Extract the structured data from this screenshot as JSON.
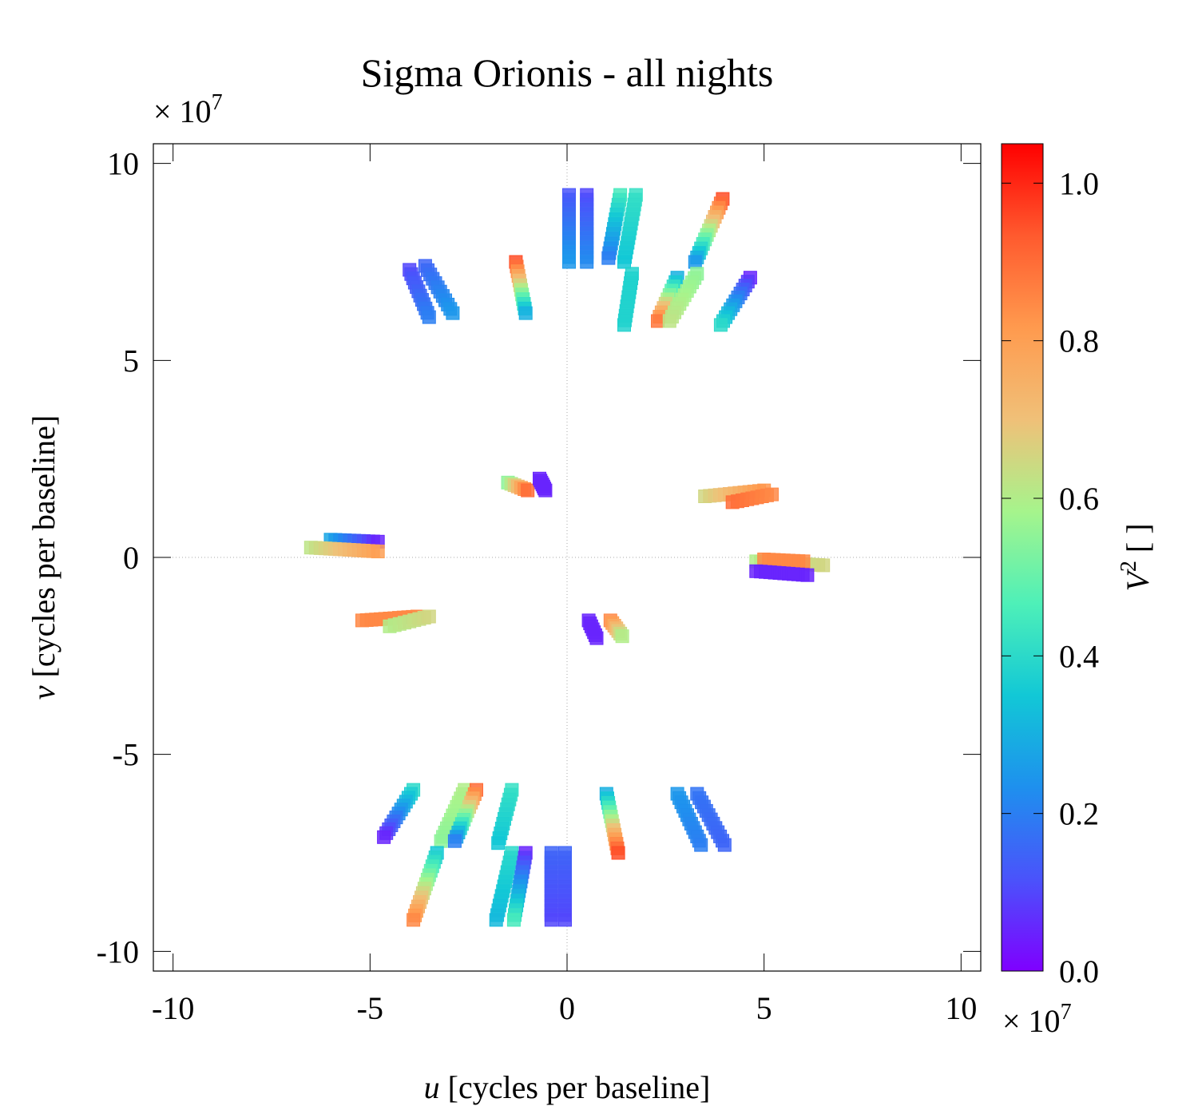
{
  "chart_data": {
    "type": "scatter",
    "title": "Sigma Orionis - all nights",
    "xlabel": {
      "var": "u",
      "rest": " [cycles per baseline]"
    },
    "ylabel": {
      "var": "v",
      "rest": " [cycles per baseline]"
    },
    "xlim": [
      -10.5,
      10.5
    ],
    "ylim": [
      -10.5,
      10.5
    ],
    "x_ticks": [
      -10,
      -5,
      0,
      5,
      10
    ],
    "y_ticks": [
      -10,
      -5,
      0,
      5,
      10
    ],
    "x_tick_labels": [
      "-10",
      "-5",
      "0",
      "5",
      "10"
    ],
    "y_tick_labels": [
      "-10",
      "-5",
      "0",
      "5",
      "10"
    ],
    "axis_multiplier": {
      "prefix": "× 10",
      "exp": "7"
    },
    "zero_lines": true,
    "colorbar": {
      "label": {
        "var": "V",
        "sup": "2",
        "rest": " [ ]"
      },
      "range": [
        0.0,
        1.05
      ],
      "ticks": [
        0.0,
        0.2,
        0.4,
        0.6,
        0.8,
        1.0
      ],
      "tick_labels": [
        "0.0",
        "0.2",
        "0.4",
        "0.6",
        "0.8",
        "1.0"
      ],
      "colormap": [
        "#7f00ff",
        "#4a53fb",
        "#1e90ee",
        "#12c8d6",
        "#4ef0b8",
        "#a6f48c",
        "#f0c078",
        "#ff9a4e",
        "#ff5a2e",
        "#ff0000"
      ]
    },
    "tracks": [
      {
        "from": [
          0.05,
          9.2
        ],
        "to": [
          0.05,
          7.5
        ],
        "v2": [
          0.12,
          0.25
        ]
      },
      {
        "from": [
          0.5,
          9.2
        ],
        "to": [
          0.5,
          7.5
        ],
        "v2": [
          0.1,
          0.22
        ]
      },
      {
        "from": [
          1.35,
          9.2
        ],
        "to": [
          1.05,
          7.6
        ],
        "v2": [
          0.45,
          0.2
        ]
      },
      {
        "from": [
          1.75,
          9.2
        ],
        "to": [
          1.45,
          7.5
        ],
        "v2": [
          0.42,
          0.35
        ]
      },
      {
        "from": [
          3.95,
          9.1
        ],
        "to": [
          3.25,
          7.5
        ],
        "v2": [
          0.95,
          0.25
        ]
      },
      {
        "from": [
          1.65,
          7.2
        ],
        "to": [
          1.45,
          5.9
        ],
        "v2": [
          0.38,
          0.38
        ]
      },
      {
        "from": [
          2.8,
          7.1
        ],
        "to": [
          2.3,
          6.0
        ],
        "v2": [
          0.3,
          0.88
        ]
      },
      {
        "from": [
          3.3,
          7.2
        ],
        "to": [
          2.6,
          6.0
        ],
        "v2": [
          0.55,
          0.62
        ]
      },
      {
        "from": [
          4.65,
          7.1
        ],
        "to": [
          3.9,
          5.9
        ],
        "v2": [
          0.05,
          0.4
        ]
      },
      {
        "from": [
          -1.3,
          7.5
        ],
        "to": [
          -1.05,
          6.2
        ],
        "v2": [
          0.95,
          0.3
        ]
      },
      {
        "from": [
          -4.0,
          7.3
        ],
        "to": [
          -3.5,
          6.1
        ],
        "v2": [
          0.1,
          0.2
        ]
      },
      {
        "from": [
          -3.6,
          7.4
        ],
        "to": [
          -2.9,
          6.2
        ],
        "v2": [
          0.15,
          0.25
        ]
      },
      {
        "from": [
          -1.5,
          1.9
        ],
        "to": [
          -1.0,
          1.7
        ],
        "v2": [
          0.55,
          0.9
        ]
      },
      {
        "from": [
          -0.7,
          2.0
        ],
        "to": [
          -0.55,
          1.7
        ],
        "v2": [
          0.05,
          0.05
        ]
      },
      {
        "from": [
          3.5,
          1.55
        ],
        "to": [
          5.0,
          1.7
        ],
        "v2": [
          0.65,
          0.82
        ]
      },
      {
        "from": [
          4.2,
          1.4
        ],
        "to": [
          5.2,
          1.6
        ],
        "v2": [
          0.9,
          0.85
        ]
      },
      {
        "from": [
          -6.0,
          0.45
        ],
        "to": [
          -4.8,
          0.4
        ],
        "v2": [
          0.28,
          0.05
        ]
      },
      {
        "from": [
          -6.5,
          0.25
        ],
        "to": [
          -4.8,
          0.15
        ],
        "v2": [
          0.62,
          0.8
        ]
      },
      {
        "from": [
          4.8,
          -0.1
        ],
        "to": [
          6.5,
          -0.2
        ],
        "v2": [
          0.6,
          0.65
        ]
      },
      {
        "from": [
          5.0,
          -0.05
        ],
        "to": [
          6.0,
          -0.1
        ],
        "v2": [
          0.85,
          0.85
        ]
      },
      {
        "from": [
          4.8,
          -0.35
        ],
        "to": [
          6.1,
          -0.45
        ],
        "v2": [
          0.05,
          0.05
        ]
      },
      {
        "from": [
          -5.2,
          -1.6
        ],
        "to": [
          -3.8,
          -1.5
        ],
        "v2": [
          0.85,
          0.85
        ]
      },
      {
        "from": [
          -4.5,
          -1.75
        ],
        "to": [
          -3.5,
          -1.5
        ],
        "v2": [
          0.6,
          0.65
        ]
      },
      {
        "from": [
          0.55,
          -1.6
        ],
        "to": [
          0.75,
          -2.05
        ],
        "v2": [
          0.05,
          0.05
        ]
      },
      {
        "from": [
          1.1,
          -1.6
        ],
        "to": [
          1.4,
          -2.0
        ],
        "v2": [
          0.85,
          0.6
        ]
      },
      {
        "from": [
          -3.9,
          -5.9
        ],
        "to": [
          -4.65,
          -7.1
        ],
        "v2": [
          0.4,
          0.05
        ]
      },
      {
        "from": [
          -2.6,
          -5.9
        ],
        "to": [
          -3.2,
          -7.2
        ],
        "v2": [
          0.6,
          0.55
        ]
      },
      {
        "from": [
          -2.3,
          -5.9
        ],
        "to": [
          -2.85,
          -7.2
        ],
        "v2": [
          0.9,
          0.2
        ]
      },
      {
        "from": [
          -1.4,
          -5.9
        ],
        "to": [
          -1.75,
          -7.25
        ],
        "v2": [
          0.42,
          0.35
        ]
      },
      {
        "from": [
          1.0,
          -6.0
        ],
        "to": [
          1.3,
          -7.5
        ],
        "v2": [
          0.3,
          0.95
        ]
      },
      {
        "from": [
          2.8,
          -6.0
        ],
        "to": [
          3.4,
          -7.3
        ],
        "v2": [
          0.25,
          0.2
        ]
      },
      {
        "from": [
          3.3,
          -6.0
        ],
        "to": [
          4.0,
          -7.3
        ],
        "v2": [
          0.18,
          0.15
        ]
      },
      {
        "from": [
          -3.3,
          -7.5
        ],
        "to": [
          -3.9,
          -9.2
        ],
        "v2": [
          0.35,
          0.85
        ]
      },
      {
        "from": [
          -1.4,
          -7.5
        ],
        "to": [
          -1.8,
          -9.2
        ],
        "v2": [
          0.4,
          0.32
        ]
      },
      {
        "from": [
          -1.05,
          -7.5
        ],
        "to": [
          -1.35,
          -9.2
        ],
        "v2": [
          0.05,
          0.45
        ]
      },
      {
        "from": [
          -0.4,
          -7.5
        ],
        "to": [
          -0.4,
          -9.2
        ],
        "v2": [
          0.15,
          0.1
        ]
      },
      {
        "from": [
          -0.05,
          -7.5
        ],
        "to": [
          -0.05,
          -9.2
        ],
        "v2": [
          0.15,
          0.1
        ]
      }
    ]
  }
}
